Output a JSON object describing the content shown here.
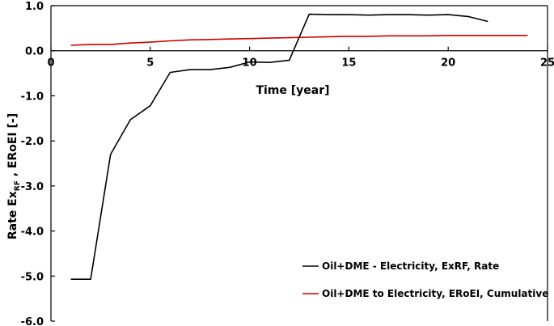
{
  "chart_data": {
    "type": "line",
    "xlabel": "Time [year]",
    "ylabel": "Rate Ex",
    "ylabel_subscript": "RF",
    "ylabel_tail": " , ERoEI [-]",
    "xlim": [
      0,
      25
    ],
    "ylim": [
      -6.0,
      1.0
    ],
    "x_ticks": [
      0,
      5,
      10,
      15,
      20,
      25
    ],
    "x_tick_labels": [
      "0",
      "5",
      "10",
      "15",
      "20",
      "25"
    ],
    "y_ticks": [
      1.0,
      0.0,
      -1.0,
      -2.0,
      -3.0,
      -4.0,
      -5.0,
      -6.0
    ],
    "y_tick_labels": [
      "1.0",
      "0.0",
      "-1.0",
      "-2.0",
      "-3.0",
      "-4.0",
      "-5.0",
      "-6.0"
    ],
    "grid": false,
    "legend_position": "bottom-right",
    "series": [
      {
        "name": "Oil+DME - Electricity, ExRF, Rate",
        "color": "#000000",
        "x": [
          1,
          2,
          3,
          4,
          5,
          6,
          7,
          8,
          9,
          10,
          11,
          12,
          13,
          14,
          15,
          16,
          17,
          18,
          19,
          20,
          21,
          22
        ],
        "values": [
          -5.07,
          -5.07,
          -2.3,
          -1.53,
          -1.22,
          -0.48,
          -0.42,
          -0.42,
          -0.37,
          -0.25,
          -0.26,
          -0.21,
          0.81,
          0.8,
          0.8,
          0.79,
          0.8,
          0.8,
          0.79,
          0.8,
          0.76,
          0.65
        ]
      },
      {
        "name": "Oil+DME to Electricity, ERoEI, Cumulative",
        "color": "#cc0000",
        "x": [
          1,
          2,
          3,
          4,
          5,
          6,
          7,
          8,
          9,
          10,
          11,
          12,
          13,
          14,
          15,
          16,
          17,
          18,
          19,
          20,
          21,
          22,
          23,
          24
        ],
        "values": [
          0.12,
          0.14,
          0.14,
          0.17,
          0.19,
          0.22,
          0.24,
          0.25,
          0.26,
          0.27,
          0.28,
          0.29,
          0.3,
          0.31,
          0.32,
          0.32,
          0.33,
          0.33,
          0.33,
          0.34,
          0.34,
          0.34,
          0.34,
          0.34
        ]
      }
    ]
  }
}
